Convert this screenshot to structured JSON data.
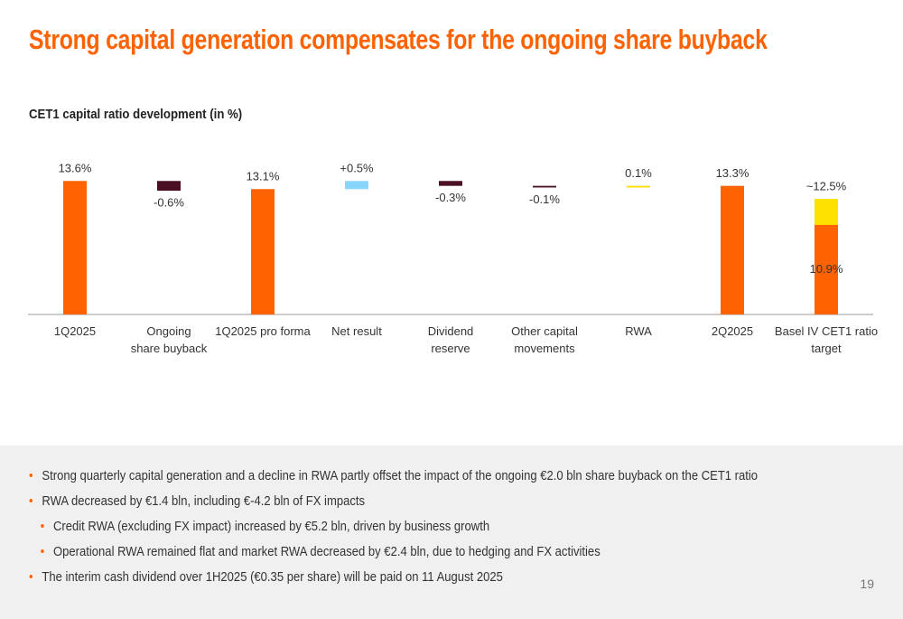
{
  "title": "Strong capital generation compensates for the ongoing share buyback",
  "chart_data": {
    "type": "waterfall",
    "title": "CET1 capital ratio development (in %)",
    "categories": [
      "1Q2025",
      "Ongoing\nshare buyback",
      "1Q2025 pro forma",
      "Net result",
      "Dividend\nreserve",
      "Other capital\nmovements",
      "RWA",
      "2Q2025",
      "Basel IV CET1 ratio\ntarget"
    ],
    "values": [
      13.6,
      -0.6,
      13.1,
      0.5,
      -0.3,
      -0.1,
      0.1,
      13.3,
      12.5
    ],
    "value_labels": [
      "13.6%",
      "-0.6%",
      "13.1%",
      "+0.5%",
      "-0.3%",
      "-0.1%",
      "0.1%",
      "13.3%",
      "~12.5%"
    ],
    "measure": [
      "absolute",
      "relative",
      "absolute",
      "relative",
      "relative",
      "relative",
      "relative",
      "absolute",
      "absolute"
    ],
    "colors": [
      "#ff6200",
      "#4a0f23",
      "#ff6200",
      "#89d6fd",
      "#4a0f23",
      "#4a0f23",
      "#ffe100",
      "#ff6200",
      "#ffe100"
    ],
    "overlay": {
      "category": 8,
      "value": 10.9,
      "label": "10.9%",
      "color": "#ff6200"
    },
    "ylim": [
      5.4,
      17.5
    ]
  },
  "bullets": [
    {
      "text": "Strong quarterly capital generation and a decline in RWA partly offset the impact of the ongoing €2.0 bln share buyback on the CET1 ratio",
      "level": 1
    },
    {
      "text": "RWA decreased by €1.4 bln, including €-4.2 bln of FX impacts",
      "level": 1
    },
    {
      "text": "Credit RWA (excluding FX impact) increased by €5.2 bln, driven by business growth",
      "level": 2
    },
    {
      "text": "Operational RWA remained flat and market RWA decreased by €2.4 bln, due to hedging and FX activities",
      "level": 2
    },
    {
      "text": "The interim cash dividend over 1H2025 (€0.35 per share) will be paid on 11 August 2025",
      "level": 1
    }
  ],
  "page_number": "19"
}
